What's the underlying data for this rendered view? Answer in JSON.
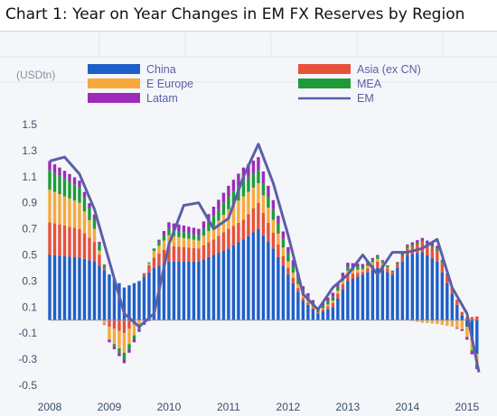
{
  "title": "Chart 1: Year on Year Changes in EM FX Reserves by Region",
  "chart_data": {
    "type": "bar",
    "stacked": true,
    "title": "Chart 1: Year on Year Changes in EM FX Reserves by Region",
    "unit_label": "(USDtn)",
    "ylim": [
      -0.5,
      1.5
    ],
    "yticks": [
      "-0.5",
      "-0.3",
      "-0.1",
      "0.1",
      "0.3",
      "0.5",
      "0.7",
      "0.9",
      "1.1",
      "1.3",
      "1.5"
    ],
    "xlim": [
      2008.0,
      2015.2
    ],
    "xticks": [
      "2008",
      "2009",
      "2010",
      "2011",
      "2012",
      "2013",
      "2014",
      "2015"
    ],
    "legend_position": "top",
    "grid": false,
    "series": [
      {
        "name": "China",
        "color": "#1f5fc8",
        "x": [
          2008.0,
          2008.5,
          2008.75,
          2009.0,
          2009.25,
          2009.5,
          2009.75,
          2010.0,
          2010.5,
          2010.75,
          2011.0,
          2011.25,
          2011.5,
          2011.75,
          2012.0,
          2012.25,
          2012.5,
          2012.75,
          2013.0,
          2013.25,
          2013.5,
          2013.75,
          2014.0,
          2014.25,
          2014.5,
          2014.75,
          2015.0,
          2015.2
        ],
        "y": [
          0.5,
          0.48,
          0.45,
          0.35,
          0.25,
          0.3,
          0.4,
          0.45,
          0.45,
          0.5,
          0.55,
          0.62,
          0.7,
          0.55,
          0.35,
          0.15,
          0.05,
          0.1,
          0.3,
          0.35,
          0.4,
          0.35,
          0.5,
          0.52,
          0.45,
          0.2,
          -0.05,
          -0.3
        ]
      },
      {
        "name": "Asia (ex CN)",
        "color": "#e8503a",
        "x": [
          2008.0,
          2008.5,
          2008.75,
          2009.0,
          2009.25,
          2009.5,
          2009.75,
          2010.0,
          2010.5,
          2010.75,
          2011.0,
          2011.25,
          2011.5,
          2011.75,
          2012.0,
          2012.25,
          2012.5,
          2012.75,
          2013.0,
          2013.25,
          2013.5,
          2013.75,
          2014.0,
          2014.25,
          2014.5,
          2014.75,
          2015.0,
          2015.2
        ],
        "y": [
          0.25,
          0.22,
          0.15,
          -0.05,
          -0.1,
          0.0,
          0.08,
          0.12,
          0.1,
          0.12,
          0.15,
          0.15,
          0.2,
          0.12,
          0.05,
          0.02,
          0.01,
          0.03,
          0.05,
          0.02,
          0.05,
          0.02,
          0.05,
          0.08,
          0.08,
          0.05,
          0.02,
          0.03
        ]
      },
      {
        "name": "E Europe",
        "color": "#f7a93c",
        "x": [
          2008.0,
          2008.5,
          2008.75,
          2009.0,
          2009.25,
          2009.5,
          2009.75,
          2010.0,
          2010.5,
          2010.75,
          2011.0,
          2011.25,
          2011.5,
          2011.75,
          2012.0,
          2012.25,
          2012.5,
          2012.75,
          2013.0,
          2013.25,
          2013.5,
          2013.75,
          2014.0,
          2014.25,
          2014.5,
          2014.75,
          2015.0,
          2015.2
        ],
        "y": [
          0.25,
          0.2,
          0.1,
          -0.1,
          -0.15,
          -0.05,
          0.05,
          0.08,
          0.06,
          0.1,
          0.15,
          0.18,
          0.15,
          0.1,
          0.05,
          0.02,
          0.0,
          0.02,
          0.03,
          0.02,
          0.02,
          0.0,
          0.0,
          -0.02,
          -0.03,
          -0.05,
          -0.08,
          -0.07
        ]
      },
      {
        "name": "MEA",
        "color": "#1f9a3a",
        "x": [
          2008.0,
          2008.5,
          2008.75,
          2009.0,
          2009.25,
          2009.5,
          2009.75,
          2010.0,
          2010.5,
          2010.75,
          2011.0,
          2011.25,
          2011.5,
          2011.75,
          2012.0,
          2012.25,
          2012.5,
          2012.75,
          2013.0,
          2013.25,
          2013.5,
          2013.75,
          2014.0,
          2014.25,
          2014.5,
          2014.75,
          2015.0,
          2015.2
        ],
        "y": [
          0.15,
          0.12,
          0.08,
          0.0,
          -0.05,
          -0.02,
          0.02,
          0.05,
          0.04,
          0.08,
          0.1,
          0.12,
          0.1,
          0.08,
          0.06,
          0.04,
          0.02,
          0.03,
          0.03,
          0.02,
          0.02,
          0.01,
          0.02,
          0.01,
          0.02,
          0.0,
          0.0,
          -0.02
        ]
      },
      {
        "name": "Latam",
        "color": "#9b2bb8",
        "x": [
          2008.0,
          2008.5,
          2008.75,
          2009.0,
          2009.25,
          2009.5,
          2009.75,
          2010.0,
          2010.5,
          2010.75,
          2011.0,
          2011.25,
          2011.5,
          2011.75,
          2012.0,
          2012.25,
          2012.5,
          2012.75,
          2013.0,
          2013.25,
          2013.5,
          2013.75,
          2014.0,
          2014.25,
          2014.5,
          2014.75,
          2015.0,
          2015.2
        ],
        "y": [
          0.07,
          0.05,
          0.03,
          -0.02,
          -0.03,
          -0.02,
          0.0,
          0.05,
          0.05,
          0.07,
          0.08,
          0.1,
          0.1,
          0.07,
          0.05,
          0.03,
          0.02,
          0.03,
          0.03,
          0.02,
          0.01,
          0.0,
          0.01,
          0.02,
          0.02,
          0.0,
          -0.02,
          -0.03
        ]
      },
      {
        "name": "EM",
        "color": "#5b5fa8",
        "kind": "line",
        "x": [
          2008.0,
          2008.25,
          2008.5,
          2008.75,
          2009.0,
          2009.25,
          2009.5,
          2009.75,
          2010.0,
          2010.25,
          2010.5,
          2010.75,
          2011.0,
          2011.25,
          2011.5,
          2011.75,
          2012.0,
          2012.25,
          2012.5,
          2012.75,
          2013.0,
          2013.25,
          2013.5,
          2013.75,
          2014.0,
          2014.25,
          2014.5,
          2014.75,
          2015.0,
          2015.2
        ],
        "y": [
          1.22,
          1.25,
          1.12,
          0.85,
          0.45,
          0.05,
          -0.05,
          0.05,
          0.58,
          0.88,
          0.9,
          0.7,
          0.78,
          1.1,
          1.35,
          1.05,
          0.65,
          0.2,
          0.08,
          0.25,
          0.35,
          0.5,
          0.35,
          0.52,
          0.52,
          0.55,
          0.62,
          0.25,
          0.05,
          -0.4
        ]
      }
    ]
  }
}
